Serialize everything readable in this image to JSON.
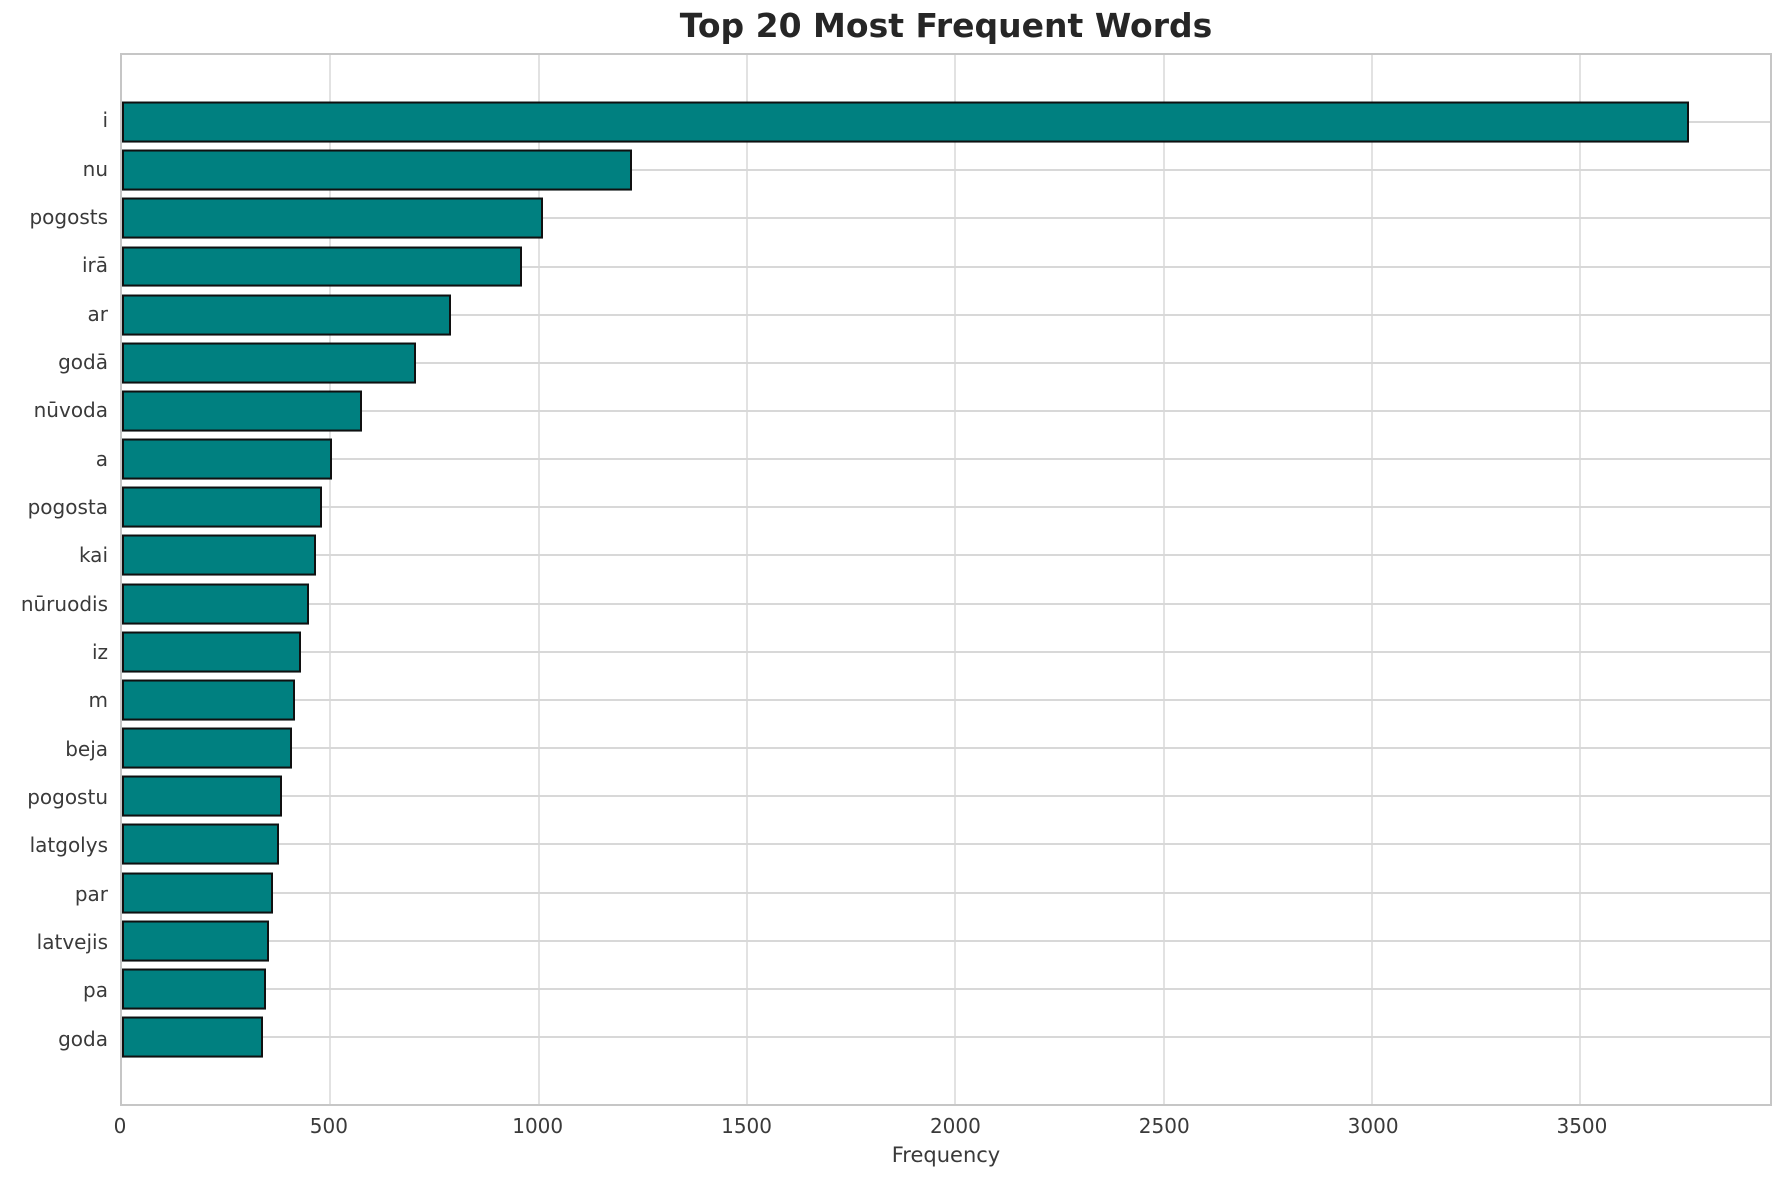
{
  "chart_data": {
    "type": "bar",
    "orientation": "horizontal",
    "title": "Top 20 Most Frequent Words",
    "xlabel": "Frequency",
    "categories": [
      "i",
      "nu",
      "pogosts",
      "irā",
      "ar",
      "godā",
      "nūvoda",
      "a",
      "pogosta",
      "kai",
      "nūruodis",
      "iz",
      "m",
      "beja",
      "pogostu",
      "latgolys",
      "par",
      "latvejis",
      "pa",
      "goda"
    ],
    "values": [
      3760,
      1225,
      1010,
      960,
      790,
      705,
      577,
      505,
      480,
      465,
      448,
      430,
      415,
      408,
      383,
      376,
      362,
      352,
      345,
      338
    ],
    "xlim": [
      0,
      3955
    ],
    "xticks": [
      0,
      500,
      1000,
      1500,
      2000,
      2500,
      3000,
      3500
    ],
    "grid": true,
    "legend": false,
    "bar_color": "#008080",
    "bar_edge_color": "#101010",
    "gridline_color": "#d8d8d8",
    "background_color": "#ffffff"
  }
}
